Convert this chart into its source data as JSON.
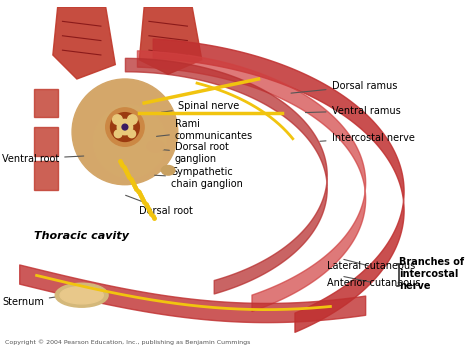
{
  "title": "",
  "background_color": "#ffffff",
  "labels": {
    "dorsal_ramus": "Dorsal ramus",
    "ventral_ramus": "Ventral ramus",
    "intercostal_nerve": "Intercostal nerve",
    "spinal_nerve": "Spinal nerve",
    "rami_communicantes": "Rami\ncommunicantes",
    "dorsal_root_ganglion": "Dorsal root\nganglion",
    "sympathetic_chain_ganglion": "Sympathetic\nchain ganglion",
    "dorsal_root": "Dorsal root",
    "ventral_root": "Ventral root",
    "thoracic_cavity": "Thoracic cavity",
    "sternum": "Sternum",
    "lateral_cutaneous": "Lateral cutaneous",
    "anterior_cutaneous": "Anterior cutaneous",
    "branches_of_intercostal_nerve": "Branches of\nintercostal\nnerve"
  },
  "colors": {
    "muscle_red": "#c0392b",
    "muscle_light": "#e74c3c",
    "nerve_yellow": "#f1c40f",
    "bone_tan": "#d4a76a",
    "cord_dark": "#8b4513",
    "skin_outer": "#e8a87c",
    "annotation_line": "#555555",
    "text_color": "#000000",
    "thoracic_text": "#1a1a1a",
    "bracket_color": "#333333",
    "nerve_dark": "#cc8800",
    "rib_red": "#b03030",
    "background": "#ffffff"
  },
  "figsize": [
    4.74,
    3.55
  ],
  "dpi": 100
}
